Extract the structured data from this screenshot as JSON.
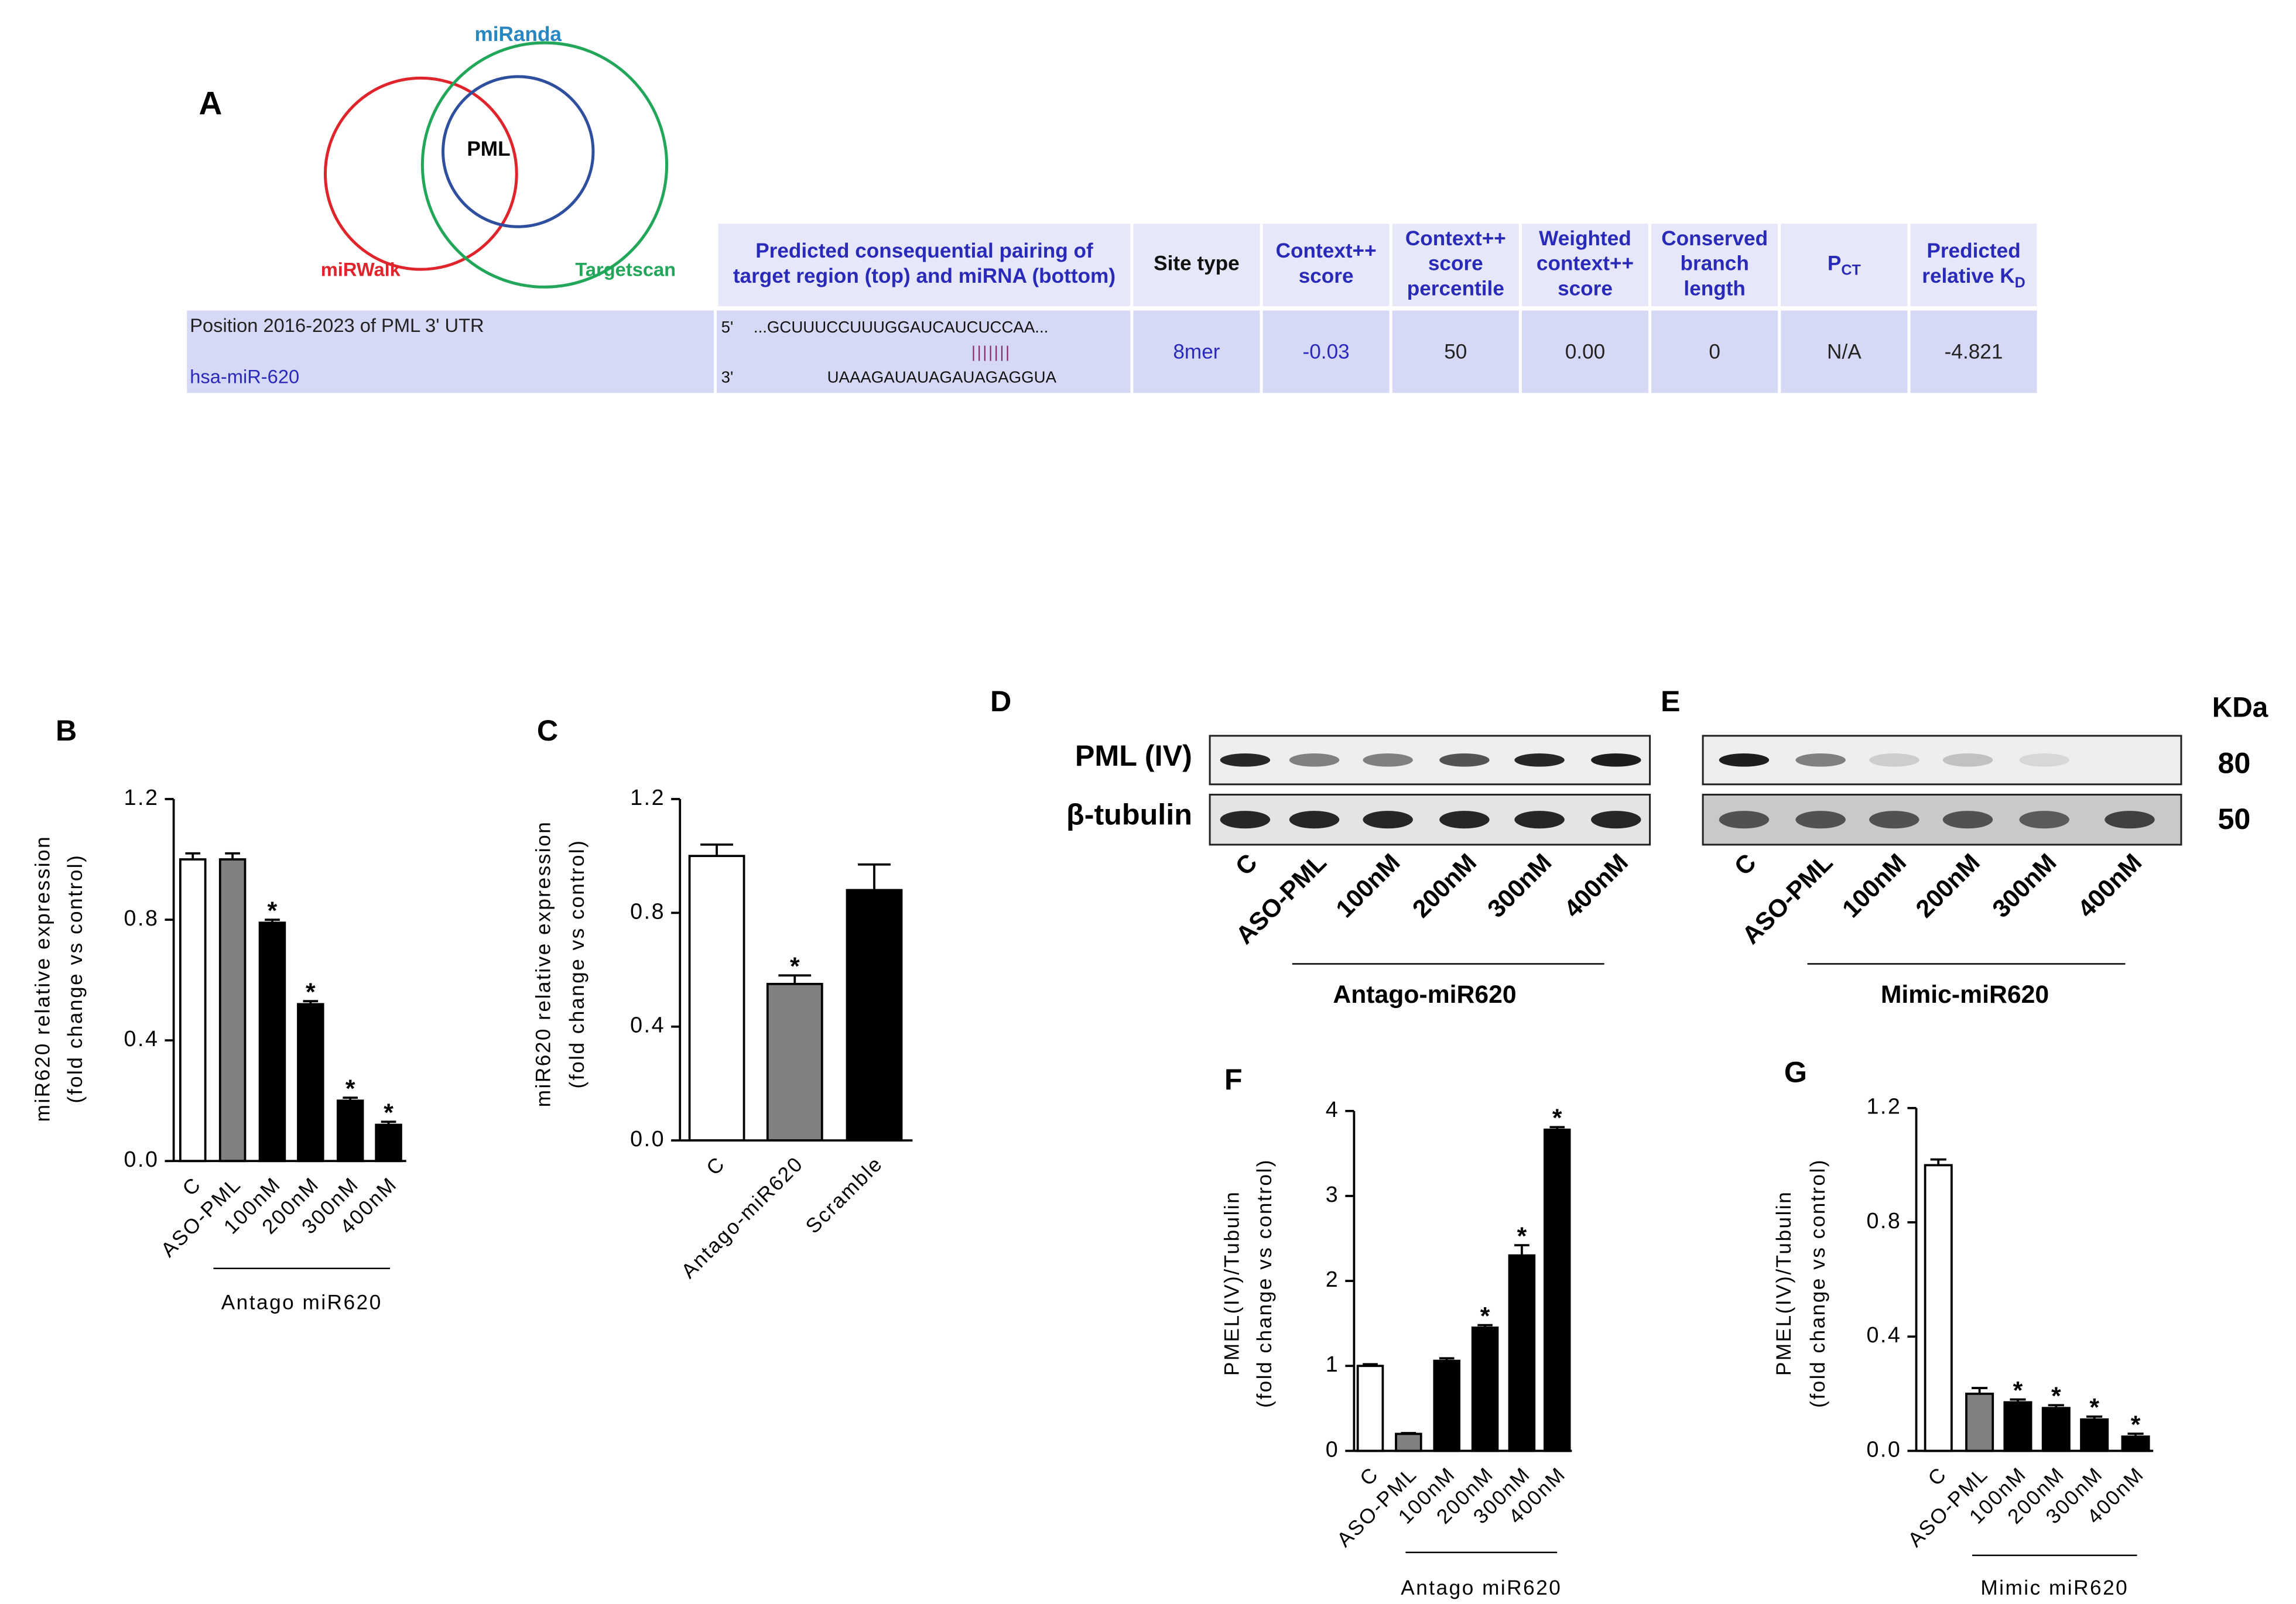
{
  "panel_a": {
    "label": "A",
    "venn": {
      "sets": [
        "miRanda",
        "miRWalk",
        "Targetscan"
      ],
      "center": "PML"
    },
    "table": {
      "headers": [
        {
          "lines": [
            "Predicted consequential pairing of",
            "target region (top) and miRNA (bottom)"
          ]
        },
        {
          "lines": [
            "Site type"
          ]
        },
        {
          "lines": [
            "Context++",
            "score"
          ]
        },
        {
          "lines": [
            "Context++",
            "score",
            "percentile"
          ]
        },
        {
          "lines": [
            "Weighted",
            "context++",
            "score"
          ]
        },
        {
          "lines": [
            "Conserved",
            "branch",
            "length"
          ]
        },
        {
          "lines": [
            "P"
          ],
          "sub": "CT"
        },
        {
          "lines": [
            "Predicted",
            "relative K"
          ],
          "sub": "D"
        }
      ],
      "row": {
        "position": "Position 2016-2023 of PML 3' UTR",
        "mirna": "hsa-miR-620",
        "pairing": {
          "top_end": "5'",
          "top": "...GCUUUCCUUUGGAUCAUCUCCAA...",
          "match": "|||||||",
          "bottom_end": "3'",
          "bottom": "UAAAGAUAUAGAUAGAGGUA"
        },
        "cells": [
          "8mer",
          "-0.03",
          "50",
          "0.00",
          "0",
          "N/A",
          "-4.821"
        ]
      }
    }
  },
  "blots": [
    {
      "label": "D",
      "rows": [
        "PML (IV)",
        "β-tubulin"
      ],
      "lanes": [
        "C",
        "ASO-PML",
        "100nM",
        "200nM",
        "300nM",
        "400nM"
      ],
      "group": "Antago-miR620"
    },
    {
      "label": "E",
      "lanes": [
        "C",
        "ASO-PML",
        "100nM",
        "200nM",
        "300nM",
        "400nM"
      ],
      "group": "Mimic-miR620",
      "marker_unit": "KDa",
      "markers": [
        80,
        50
      ]
    }
  ],
  "chart_data": [
    {
      "type": "bar",
      "label": "B",
      "ylabel": [
        "miR620 relative expression",
        "(fold change vs control)"
      ],
      "categories": [
        "C",
        "ASO-PML",
        "100nM",
        "200nM",
        "300nM",
        "400nM"
      ],
      "values": [
        1.0,
        1.0,
        0.79,
        0.52,
        0.2,
        0.12
      ],
      "errors": [
        0.02,
        0.02,
        0.01,
        0.01,
        0.01,
        0.01
      ],
      "significance": [
        null,
        null,
        "*",
        "*",
        "*",
        "*"
      ],
      "colors": [
        "#ffffff",
        "#808080",
        "#000000",
        "#000000",
        "#000000",
        "#000000"
      ],
      "group": "Antago miR620",
      "ylim": [
        0,
        1.2
      ],
      "yticks": [
        {
          "value": 0,
          "label": "0.0"
        },
        0.4,
        0.8,
        1.2
      ]
    },
    {
      "type": "bar",
      "label": "C",
      "ylabel": [
        "miR620 relative expression",
        "(fold change vs control)"
      ],
      "categories": [
        "C",
        "Antago-miR620",
        "Scramble"
      ],
      "values": [
        1.0,
        0.55,
        0.88
      ],
      "errors": [
        0.04,
        0.03,
        0.09
      ],
      "significance": [
        null,
        "*",
        null
      ],
      "colors": [
        "#ffffff",
        "#808080",
        "#000000"
      ],
      "ylim": [
        0,
        1.2
      ],
      "yticks": [
        {
          "value": 0,
          "label": "0.0"
        },
        0.4,
        0.8,
        1.2
      ]
    },
    {
      "type": "bar",
      "label": "F",
      "ylabel": [
        "PMEL(IV)/Tubulin",
        "(fold change vs control)"
      ],
      "categories": [
        "C",
        "ASO-PML",
        "100nM",
        "200nM",
        "300nM",
        "400nM"
      ],
      "values": [
        1.0,
        0.2,
        1.06,
        1.45,
        2.3,
        3.78
      ],
      "errors": [
        0.02,
        0.01,
        0.03,
        0.03,
        0.12,
        0.03
      ],
      "significance": [
        null,
        null,
        null,
        "*",
        "*",
        "*"
      ],
      "colors": [
        "#ffffff",
        "#808080",
        "#000000",
        "#000000",
        "#000000",
        "#000000"
      ],
      "group": "Antago miR620",
      "ylim": [
        0,
        4
      ],
      "yticks": [
        0,
        1,
        2,
        3,
        4
      ]
    },
    {
      "type": "bar",
      "label": "G",
      "ylabel": [
        "PMEL(IV)/Tubulin",
        "(fold change vs control)"
      ],
      "categories": [
        "C",
        "ASO-PML",
        "100nM",
        "200nM",
        "300nM",
        "400nM"
      ],
      "values": [
        1.0,
        0.2,
        0.17,
        0.15,
        0.11,
        0.05
      ],
      "errors": [
        0.02,
        0.02,
        0.01,
        0.01,
        0.01,
        0.01
      ],
      "significance": [
        null,
        null,
        "*",
        "*",
        "*",
        "*"
      ],
      "colors": [
        "#ffffff",
        "#808080",
        "#000000",
        "#000000",
        "#000000",
        "#000000"
      ],
      "group": "Mimic miR620",
      "ylim": [
        0,
        1.2
      ],
      "yticks": [
        {
          "value": 0,
          "label": "0.0"
        },
        0.4,
        0.8,
        1.2
      ]
    }
  ]
}
